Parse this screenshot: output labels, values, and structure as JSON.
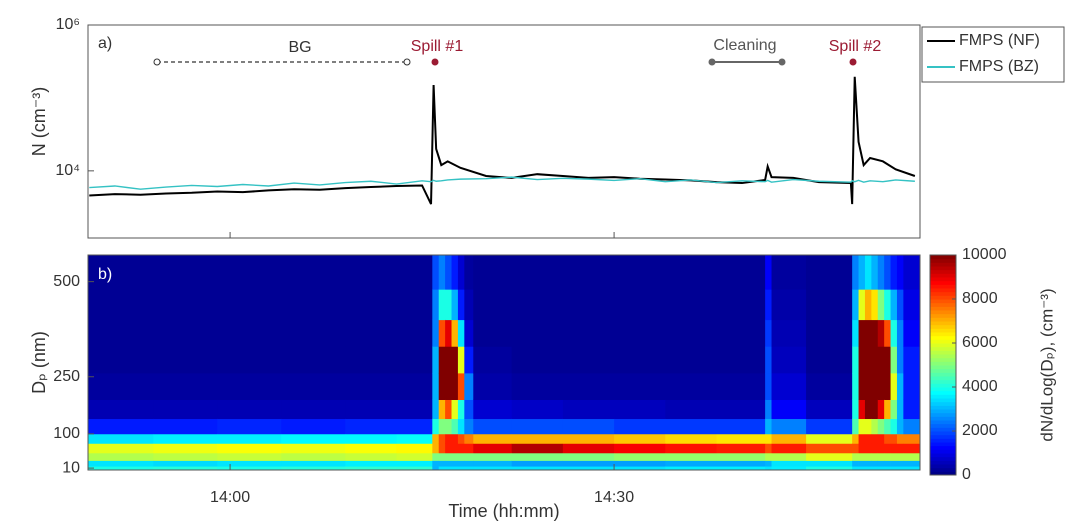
{
  "chart_data": [
    {
      "type": "line",
      "y_label": "N (cm⁻³)",
      "log_y": true,
      "xlim": [
        828.9,
        893.9
      ],
      "xticks": [
        840,
        870
      ],
      "ylim": [
        1200,
        1000000
      ],
      "yticks": [
        {
          "value": 10000,
          "label": "10⁴"
        },
        {
          "value": 1000000,
          "label": "10⁶"
        }
      ],
      "grid": false,
      "legend": "outside-right",
      "annotations": {
        "panel": "a)",
        "background": "BG",
        "spill1": "Spill #1",
        "cleaning": "Cleaning",
        "spill2": "Spill #2"
      },
      "x": [
        829,
        831,
        833,
        835,
        837,
        839,
        841,
        843,
        845,
        847,
        849,
        851,
        853,
        855,
        855.7,
        855.9,
        856.1,
        856.5,
        857,
        858,
        860,
        862,
        864,
        866,
        868,
        870,
        872,
        874,
        876,
        878,
        880,
        881.8,
        882,
        882.3,
        884,
        886,
        888.5,
        888.6,
        888.8,
        889.1,
        889.5,
        890,
        891,
        892,
        893.5
      ],
      "series": [
        {
          "name": "FMPS (NF)",
          "color": "#000000",
          "values": [
            4600,
            4800,
            4700,
            4900,
            5000,
            5200,
            5100,
            5400,
            5600,
            5500,
            5800,
            6000,
            6200,
            6300,
            3500,
            150000,
            20000,
            12000,
            13500,
            11000,
            8500,
            8000,
            9000,
            8500,
            8000,
            8200,
            7800,
            7600,
            7400,
            7000,
            6800,
            7500,
            11500,
            8200,
            8000,
            7000,
            6800,
            3500,
            195000,
            25000,
            12000,
            15000,
            13500,
            10500,
            8500
          ]
        },
        {
          "name": "FMPS (BZ)",
          "color": "#35c2c4",
          "values": [
            5900,
            6200,
            5600,
            6000,
            6300,
            6100,
            6500,
            6200,
            6800,
            6400,
            6900,
            7200,
            6600,
            7300,
            7100,
            7400,
            7200,
            7300,
            7500,
            7700,
            7800,
            8200,
            7600,
            7900,
            7700,
            7400,
            7800,
            7100,
            7500,
            6900,
            7300,
            7100,
            7400,
            7000,
            7600,
            7200,
            7000,
            7300,
            7100,
            7400,
            7000,
            7300,
            7100,
            7500,
            7200
          ]
        }
      ]
    },
    {
      "type": "heatmap",
      "panel_label": "b)",
      "x_label": "Time (hh:mm)",
      "y_label": "Dₚ (nm)",
      "colorbar_label": "dN/dLog(Dₚ), (cm⁻³)",
      "colormap": "jet",
      "xlim": [
        828.9,
        893.9
      ],
      "xticks": [
        {
          "value": 840,
          "label": "14:00"
        },
        {
          "value": 870,
          "label": "14:30"
        }
      ],
      "ylim": [
        5,
        570
      ],
      "yticks": [
        10,
        100,
        250,
        500
      ],
      "zlim": [
        0,
        10000
      ],
      "zticks": [
        0,
        2000,
        4000,
        6000,
        8000,
        10000
      ],
      "x_bins": [
        828.9,
        834,
        839,
        844,
        849,
        853,
        855.8,
        856.3,
        856.8,
        857.3,
        857.8,
        858.3,
        859,
        862,
        866,
        870,
        874,
        878,
        881.8,
        882.3,
        885,
        888.6,
        889.1,
        889.6,
        890.1,
        890.6,
        891.1,
        891.6,
        892.1,
        892.6,
        893.9
      ],
      "y_bins": [
        5,
        15,
        30,
        50,
        75,
        100,
        140,
        190,
        260,
        330,
        400,
        480,
        570
      ],
      "z": [
        [
          4000,
          3500,
          5500,
          6000,
          3500,
          1500,
          500,
          300,
          200,
          200,
          200,
          200
        ],
        [
          4100,
          3400,
          5600,
          6100,
          3600,
          1500,
          500,
          300,
          200,
          200,
          200,
          200
        ],
        [
          4000,
          3500,
          5700,
          6200,
          3600,
          1600,
          500,
          300,
          200,
          200,
          200,
          200
        ],
        [
          4100,
          3500,
          5600,
          6100,
          3700,
          1500,
          500,
          300,
          200,
          200,
          200,
          200
        ],
        [
          4200,
          3600,
          5700,
          6200,
          3700,
          1600,
          500,
          300,
          200,
          200,
          200,
          200
        ],
        [
          4200,
          3600,
          5800,
          6300,
          3800,
          1600,
          500,
          300,
          200,
          200,
          200,
          200
        ],
        [
          3000,
          3000,
          5000,
          7000,
          7000,
          4000,
          3000,
          3000,
          3000,
          2500,
          2500,
          2000
        ],
        [
          3500,
          3000,
          5000,
          8000,
          8000,
          5000,
          7000,
          10000,
          10000,
          8000,
          4000,
          2500
        ],
        [
          3500,
          3000,
          5000,
          8500,
          8500,
          5000,
          8000,
          10000,
          10000,
          9000,
          4000,
          2000
        ],
        [
          3500,
          3000,
          5000,
          8500,
          8500,
          4500,
          6000,
          10000,
          10000,
          7000,
          3000,
          1500
        ],
        [
          3500,
          3000,
          5000,
          8500,
          8000,
          3500,
          4000,
          8000,
          6000,
          3500,
          1500,
          800
        ],
        [
          3500,
          3000,
          5000,
          8500,
          7500,
          2500,
          2000,
          2500,
          1500,
          800,
          500,
          300
        ],
        [
          3500,
          3000,
          5000,
          9000,
          7000,
          2000,
          800,
          400,
          300,
          200,
          200,
          200
        ],
        [
          3500,
          2800,
          5000,
          9500,
          7000,
          2000,
          700,
          300,
          200,
          200,
          200,
          200
        ],
        [
          3500,
          2800,
          5000,
          9000,
          7000,
          2000,
          600,
          300,
          200,
          200,
          200,
          200
        ],
        [
          3500,
          2800,
          5200,
          8800,
          6800,
          1800,
          600,
          300,
          200,
          200,
          200,
          200
        ],
        [
          3600,
          2900,
          5200,
          8600,
          6600,
          1800,
          500,
          300,
          200,
          200,
          200,
          200
        ],
        [
          3600,
          2900,
          5200,
          8500,
          6500,
          1800,
          500,
          300,
          200,
          200,
          200,
          200
        ],
        [
          3500,
          3000,
          5500,
          8000,
          6500,
          3000,
          2500,
          2000,
          2000,
          1800,
          1500,
          1200
        ],
        [
          3600,
          3500,
          5500,
          8500,
          7000,
          2500,
          1200,
          800,
          600,
          500,
          400,
          300
        ],
        [
          4000,
          3500,
          6000,
          8000,
          6000,
          1800,
          600,
          300,
          200,
          200,
          200,
          200
        ],
        [
          3500,
          3000,
          5500,
          8000,
          7000,
          4500,
          4000,
          4000,
          4000,
          3500,
          3000,
          2500
        ],
        [
          3500,
          3000,
          5500,
          8500,
          8500,
          6000,
          9000,
          10000,
          10000,
          10000,
          6000,
          3000
        ],
        [
          3500,
          3000,
          5500,
          8500,
          8500,
          6000,
          10000,
          10000,
          10000,
          10000,
          7000,
          3500
        ],
        [
          3500,
          3000,
          5500,
          8500,
          8500,
          5500,
          10000,
          10000,
          10000,
          10000,
          6500,
          3000
        ],
        [
          3500,
          3000,
          5500,
          8500,
          8500,
          5000,
          9000,
          10000,
          10000,
          9500,
          5000,
          2500
        ],
        [
          3500,
          3000,
          5500,
          8500,
          8000,
          4500,
          7000,
          10000,
          10000,
          8000,
          4000,
          2000
        ],
        [
          3500,
          3000,
          5500,
          8500,
          8000,
          4000,
          5000,
          6000,
          5000,
          4000,
          3000,
          1500
        ],
        [
          3500,
          3000,
          5500,
          8500,
          7500,
          3000,
          3000,
          3000,
          2500,
          2500,
          2000,
          1200
        ],
        [
          3500,
          3000,
          5500,
          8500,
          7500,
          2500,
          1500,
          1500,
          1500,
          1200,
          1000,
          800
        ]
      ]
    }
  ]
}
